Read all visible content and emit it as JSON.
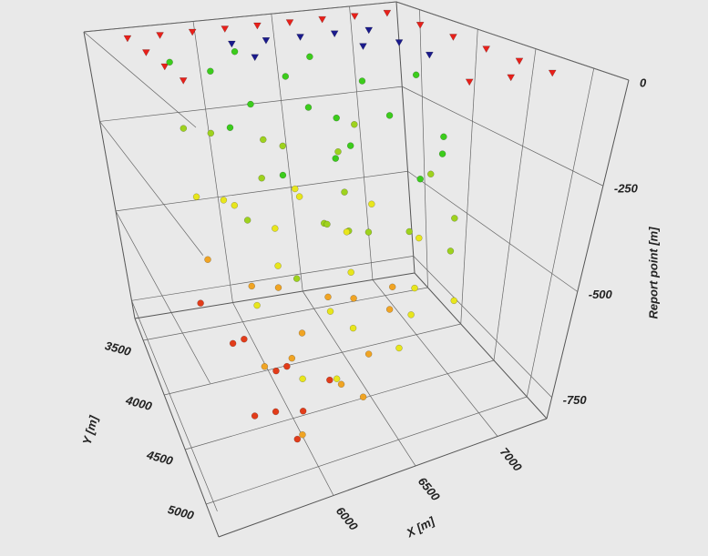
{
  "chart_data": {
    "type": "scatter3d",
    "x_label": "X [m]",
    "y_label": "Y [m]",
    "z_label": "Report point [m]",
    "xlim": [
      5300,
      7300
    ],
    "xticks": [
      6000,
      6500,
      7000
    ],
    "ylim": [
      3300,
      5300
    ],
    "yticks": [
      3500,
      4000,
      4500,
      5000
    ],
    "zlim": [
      -800,
      0
    ],
    "zticks": [
      0,
      -250,
      -500,
      -750
    ],
    "grid": true,
    "series": [
      {
        "marker": "triangle",
        "color": "#e8201a",
        "x": [
          5500,
          5700,
          5900,
          6100,
          6300,
          6500,
          6700,
          6900,
          7100,
          7100,
          7100,
          7100,
          7100,
          7100,
          5500,
          5500,
          5500,
          6900,
          6700
        ],
        "y": [
          3500,
          3500,
          3500,
          3500,
          3500,
          3500,
          3500,
          3500,
          3500,
          3800,
          4100,
          4400,
          4700,
          5000,
          3800,
          4100,
          4400,
          5000,
          5000
        ],
        "z": [
          0,
          0,
          0,
          0,
          0,
          0,
          0,
          0,
          0,
          0,
          0,
          0,
          0,
          0,
          0,
          0,
          0,
          0,
          0
        ]
      },
      {
        "marker": "triangle",
        "color": "#1a1a8c",
        "x": [
          6000,
          6200,
          6400,
          6600,
          6800,
          6800,
          6800,
          6000,
          6600
        ],
        "y": [
          3800,
          3800,
          3800,
          3800,
          3800,
          4100,
          4400,
          4100,
          4100
        ],
        "z": [
          0,
          0,
          0,
          0,
          0,
          0,
          0,
          0,
          0
        ]
      },
      {
        "marker": "sphere",
        "color": "#3ccc1c",
        "x": [
          5700,
          5900,
          6100,
          6300,
          6500,
          6700,
          6900,
          5800,
          6000,
          6200,
          6400,
          6600,
          6800,
          5900,
          6300,
          6700,
          6100,
          6500
        ],
        "y": [
          3600,
          3700,
          3600,
          3800,
          3700,
          3900,
          4100,
          4200,
          4000,
          4300,
          4200,
          4400,
          4600,
          4700,
          4600,
          4800,
          4900,
          5000
        ],
        "z": [
          -60,
          -80,
          -50,
          -100,
          -70,
          -120,
          -90,
          -150,
          -130,
          -110,
          -160,
          -140,
          -180,
          -200,
          -170,
          -190,
          -150,
          -210
        ]
      },
      {
        "marker": "sphere",
        "color": "#9ed21e",
        "x": [
          5700,
          5900,
          6100,
          6300,
          6500,
          6700,
          6900,
          5800,
          6000,
          6200,
          6400,
          6600,
          6800,
          5900,
          6300,
          6700,
          6100,
          6500
        ],
        "y": [
          3700,
          3600,
          3900,
          3700,
          4000,
          3800,
          4300,
          4400,
          4100,
          4500,
          4300,
          4700,
          4800,
          4900,
          4600,
          5000,
          4800,
          4400
        ],
        "z": [
          -220,
          -260,
          -240,
          -300,
          -280,
          -250,
          -320,
          -340,
          -300,
          -360,
          -330,
          -380,
          -350,
          -400,
          -370,
          -390,
          -310,
          -420
        ]
      },
      {
        "marker": "sphere",
        "color": "#e8e61c",
        "x": [
          5700,
          5900,
          6100,
          6300,
          6500,
          6700,
          6900,
          5800,
          6000,
          6200,
          6400,
          6600,
          6800,
          5900,
          6300,
          6700,
          6100,
          6500,
          6000,
          6400
        ],
        "y": [
          3800,
          3700,
          4000,
          3900,
          4100,
          4000,
          4200,
          4500,
          4300,
          4600,
          4400,
          4800,
          4900,
          5000,
          4700,
          4600,
          5000,
          4900,
          3600,
          3600
        ],
        "z": [
          -380,
          -420,
          -450,
          -400,
          -470,
          -430,
          -500,
          -520,
          -480,
          -550,
          -510,
          -560,
          -530,
          -600,
          -580,
          -540,
          -620,
          -610,
          -460,
          -440
        ]
      },
      {
        "marker": "sphere",
        "color": "#f0a424",
        "x": [
          5700,
          5900,
          6100,
          6300,
          6500,
          5800,
          6000,
          6200,
          6400,
          6600,
          5900,
          6300,
          6100,
          6700
        ],
        "y": [
          3900,
          4100,
          4000,
          4300,
          4200,
          4600,
          4500,
          4800,
          4700,
          4500,
          5000,
          4900,
          4400,
          4300
        ],
        "z": [
          -520,
          -560,
          -600,
          -580,
          -620,
          -640,
          -660,
          -680,
          -650,
          -600,
          -720,
          -700,
          -630,
          -590
        ]
      },
      {
        "marker": "sphere",
        "color": "#e23c1a",
        "x": [
          5600,
          5700,
          5800,
          5900,
          6000,
          5700,
          5800,
          6000,
          6200,
          5900
        ],
        "y": [
          4000,
          4300,
          4200,
          4500,
          4400,
          4700,
          4800,
          4700,
          4600,
          4900
        ],
        "z": [
          -600,
          -640,
          -660,
          -680,
          -700,
          -720,
          -700,
          -740,
          -710,
          -750
        ]
      }
    ]
  }
}
